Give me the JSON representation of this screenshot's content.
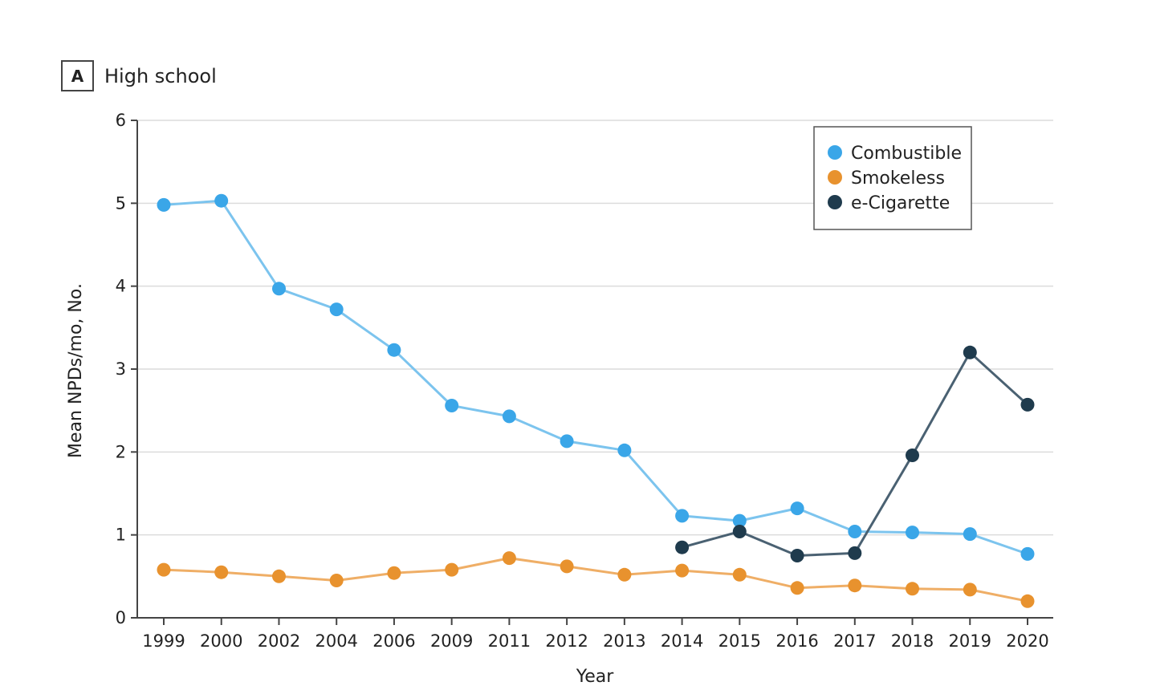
{
  "chart_data": {
    "type": "line",
    "panel_label": "A",
    "title": "High school",
    "xlabel": "Year",
    "ylabel": "Mean NPDs/mo, No.",
    "ylim": [
      0,
      6
    ],
    "yticks": [
      0,
      1,
      2,
      3,
      4,
      5,
      6
    ],
    "grid": "horizontal",
    "legend_position": "top-right",
    "categories": [
      "1999",
      "2000",
      "2002",
      "2004",
      "2006",
      "2009",
      "2011",
      "2012",
      "2013",
      "2014",
      "2015",
      "2016",
      "2017",
      "2018",
      "2019",
      "2020"
    ],
    "series": [
      {
        "name": "Combustible",
        "color": "#3aa6e8",
        "line_color": "#7cc4ee",
        "values": [
          4.98,
          5.03,
          3.97,
          3.72,
          3.23,
          2.56,
          2.43,
          2.13,
          2.02,
          1.23,
          1.17,
          1.32,
          1.04,
          1.03,
          1.01,
          0.77
        ]
      },
      {
        "name": "Smokeless",
        "color": "#e8922e",
        "line_color": "#efae66",
        "values": [
          0.58,
          0.55,
          0.5,
          0.45,
          0.54,
          0.58,
          0.72,
          0.62,
          0.52,
          0.57,
          0.52,
          0.36,
          0.39,
          0.35,
          0.34,
          0.2
        ]
      },
      {
        "name": "e-Cigarette",
        "color": "#1f3b4d",
        "line_color": "#4a6172",
        "values": [
          null,
          null,
          null,
          null,
          null,
          null,
          null,
          null,
          null,
          0.85,
          1.04,
          0.75,
          0.78,
          1.96,
          3.2,
          2.57
        ]
      }
    ]
  }
}
